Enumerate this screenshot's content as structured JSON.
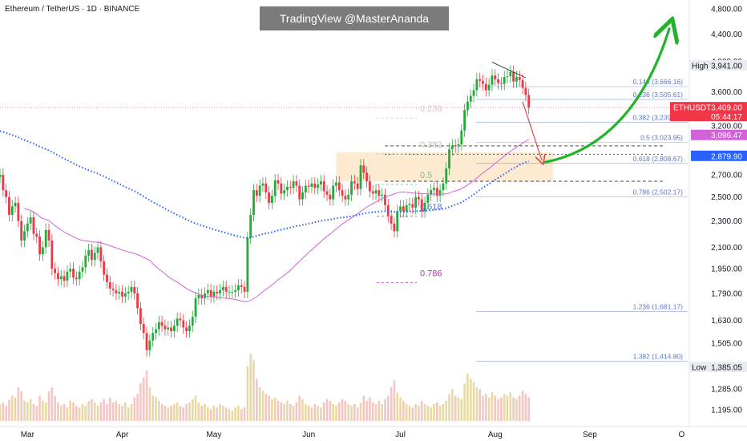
{
  "header": {
    "title": "Ethereum / TetherUS · 1D · BINANCE",
    "watermark": "TradingView @MasterAnanda"
  },
  "colors": {
    "up": "#26a69a",
    "down": "#ef5350",
    "upVivid": "#22ab36",
    "downVivid": "#f23645",
    "volumeUp": "#e8d9a4",
    "volumeDown": "#f2c6c4",
    "ema": "#2962ff",
    "ma": "#d162d8",
    "fib": "#5d77c7",
    "zone": "#fde6c8",
    "arrowGreen": "#22b32b",
    "arrowRed": "#e0525b",
    "lastPrice": "#f23645",
    "maTag": "#d162d8",
    "emaTag": "#2962ff"
  },
  "chart_data": {
    "type": "candlestick",
    "symbol": "ETHUSDT",
    "scale": "log",
    "ylim": [
      1150,
      4950
    ],
    "x_range": [
      "2025-02-20",
      "2025-10-03"
    ],
    "y_ticks": [
      "4,800.00",
      "4,400.00",
      "4,000.00",
      "3,600.00",
      "3,200.00",
      "2,700.00",
      "2,500.00",
      "2,300.00",
      "2,100.00",
      "1,950.00",
      "1,790.00",
      "1,630.00",
      "1,505.00",
      "1,385.05",
      "1,285.00",
      "1,195.00"
    ],
    "y_tick_values": [
      4800,
      4400,
      4000,
      3600,
      3200,
      2700,
      2500,
      2300,
      2100,
      1950,
      1790,
      1630,
      1505,
      1385.05,
      1285,
      1195
    ],
    "x_ticks": [
      {
        "label": "Mar",
        "date": "2025-03-01"
      },
      {
        "label": "Apr",
        "date": "2025-04-01"
      },
      {
        "label": "May",
        "date": "2025-05-01"
      },
      {
        "label": "Jun",
        "date": "2025-06-01"
      },
      {
        "label": "Jul",
        "date": "2025-07-01"
      },
      {
        "label": "Aug",
        "date": "2025-08-01"
      },
      {
        "label": "Sep",
        "date": "2025-09-01"
      },
      {
        "label": "O",
        "date": "2025-10-01"
      }
    ],
    "price_tags": {
      "high": {
        "label": "High",
        "value_label": "3,941.00",
        "value": 3941
      },
      "symbol": {
        "label": "ETHUSDT",
        "value_label": "3,409.00",
        "countdown": "05:44:17",
        "value": 3409
      },
      "ma": {
        "value_label": "3,096.47",
        "value": 3096.47
      },
      "ema": {
        "value_label": "2,879.90",
        "value": 2879.9
      },
      "low": {
        "label": "Low",
        "value_label": "1,385.05",
        "value": 1385.05
      }
    },
    "fib_right": [
      {
        "label": "0.148 (3,666.16)",
        "value": 3666.16
      },
      {
        "label": "0.236 (3,505.61)",
        "value": 3505.61
      },
      {
        "label": "0.382 (3,239.24)",
        "value": 3239.24
      },
      {
        "label": "0.5 (3,023.95)",
        "value": 3023.95
      },
      {
        "label": "0.618 (2,808.67)",
        "value": 2808.67
      },
      {
        "label": "0.786 (2,502.17)",
        "value": 2502.17
      },
      {
        "label": "1.236 (1,681.17)",
        "value": 1681.17
      },
      {
        "label": "1.382 (1,414.80)",
        "value": 1414.8
      }
    ],
    "fib_left": [
      {
        "label": "0.236",
        "value": 3400,
        "color": "#d6c7c7"
      },
      {
        "label": "0.382",
        "value": 3000,
        "color": "#bdbdbd"
      },
      {
        "label": "0.5",
        "value": 2700,
        "color": "#7cc27e"
      },
      {
        "label": "0.618",
        "value": 2420,
        "color": "#5d77c7"
      },
      {
        "label": "0.786",
        "value": 1920,
        "color": "#a040a8"
      }
    ],
    "zone": {
      "from_date": "2025-06-10",
      "to_date": "2025-08-20",
      "low": 2640,
      "high": 2920
    },
    "candles_anchor": {
      "open": 2680,
      "first_date": "2025-02-20"
    },
    "closes": [
      2700,
      2560,
      2500,
      2350,
      2420,
      2450,
      2300,
      2150,
      2220,
      2280,
      2330,
      2200,
      2180,
      2050,
      2100,
      2230,
      2150,
      1950,
      1920,
      1880,
      1900,
      1870,
      1930,
      1950,
      1890,
      1880,
      1930,
      1960,
      2040,
      2080,
      2010,
      2060,
      2100,
      2000,
      1910,
      1860,
      1820,
      1810,
      1790,
      1800,
      1770,
      1790,
      1800,
      1830,
      1790,
      1700,
      1610,
      1560,
      1470,
      1520,
      1560,
      1580,
      1620,
      1600,
      1580,
      1590,
      1570,
      1600,
      1640,
      1630,
      1590,
      1570,
      1600,
      1650,
      1760,
      1780,
      1760,
      1790,
      1810,
      1770,
      1800,
      1790,
      1810,
      1830,
      1800,
      1800,
      1800,
      1810,
      1840,
      1830,
      1800,
      2170,
      2350,
      2560,
      2510,
      2600,
      2620,
      2540,
      2450,
      2510,
      2650,
      2620,
      2530,
      2560,
      2590,
      2580,
      2640,
      2600,
      2480,
      2540,
      2600,
      2590,
      2620,
      2580,
      2610,
      2640,
      2550,
      2520,
      2480,
      2600,
      2630,
      2560,
      2510,
      2480,
      2520,
      2640,
      2620,
      2570,
      2790,
      2720,
      2640,
      2550,
      2530,
      2560,
      2510,
      2520,
      2430,
      2340,
      2280,
      2220,
      2380,
      2420,
      2380,
      2430,
      2440,
      2410,
      2500,
      2480,
      2380,
      2450,
      2520,
      2560,
      2580,
      2510,
      2560,
      2620,
      2760,
      2950,
      2990,
      2980,
      3000,
      3150,
      3380,
      3480,
      3550,
      3620,
      3760,
      3740,
      3700,
      3620,
      3690,
      3810,
      3760,
      3710,
      3700,
      3790,
      3800,
      3860,
      3730,
      3790,
      3750,
      3650,
      3560,
      3409
    ],
    "volume_max": 100,
    "volumes": [
      20,
      22,
      18,
      25,
      30,
      28,
      40,
      35,
      24,
      22,
      26,
      20,
      18,
      30,
      24,
      22,
      35,
      40,
      30,
      22,
      18,
      20,
      16,
      24,
      22,
      18,
      16,
      20,
      18,
      24,
      26,
      22,
      18,
      22,
      26,
      20,
      28,
      22,
      24,
      20,
      18,
      22,
      16,
      20,
      28,
      32,
      45,
      52,
      60,
      40,
      30,
      28,
      24,
      20,
      18,
      16,
      18,
      20,
      22,
      18,
      16,
      20,
      22,
      26,
      30,
      22,
      18,
      20,
      16,
      14,
      18,
      16,
      20,
      18,
      16,
      14,
      12,
      16,
      18,
      14,
      16,
      65,
      80,
      72,
      50,
      40,
      36,
      32,
      30,
      26,
      28,
      24,
      22,
      20,
      24,
      20,
      18,
      22,
      30,
      26,
      20,
      18,
      16,
      20,
      18,
      16,
      22,
      26,
      24,
      20,
      18,
      22,
      26,
      24,
      20,
      18,
      20,
      16,
      22,
      30,
      24,
      28,
      22,
      20,
      24,
      20,
      26,
      30,
      40,
      48,
      34,
      28,
      24,
      20,
      18,
      16,
      20,
      18,
      24,
      20,
      18,
      16,
      20,
      22,
      18,
      20,
      24,
      32,
      38,
      30,
      28,
      26,
      44,
      56,
      50,
      46,
      40,
      38,
      30,
      32,
      28,
      34,
      30,
      26,
      28,
      32,
      30,
      34,
      28,
      26,
      30,
      36,
      32,
      28
    ]
  }
}
